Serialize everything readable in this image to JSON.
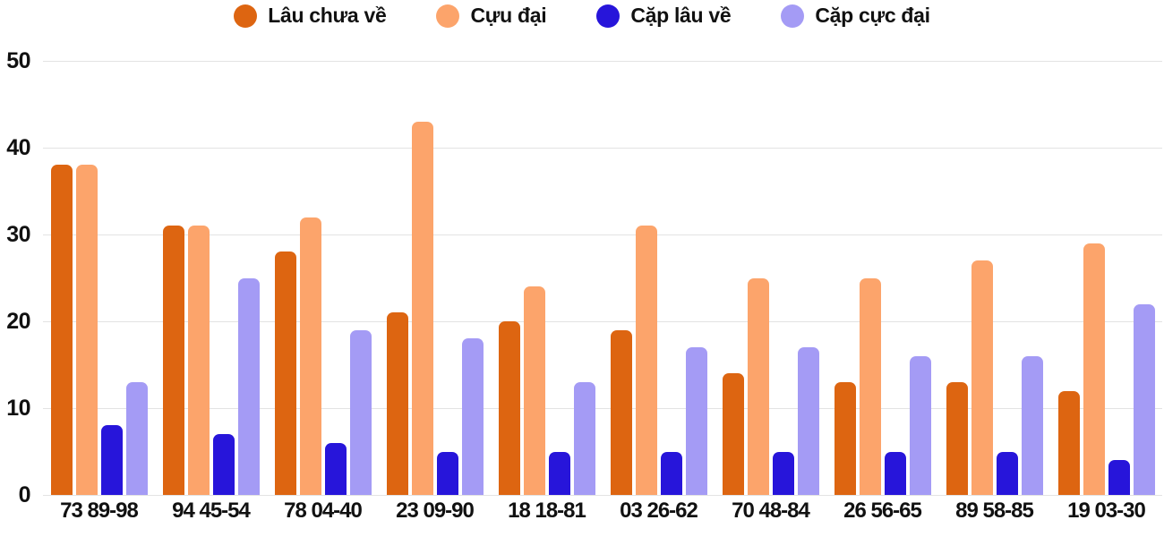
{
  "chart_data": {
    "type": "bar",
    "title": "",
    "categories": [
      "73 89-98",
      "94 45-54",
      "78 04-40",
      "23 09-90",
      "18 18-81",
      "03 26-62",
      "70 48-84",
      "26 56-65",
      "89 58-85",
      "19 03-30"
    ],
    "series": [
      {
        "name": "Lâu chưa về",
        "color": "#DD6511",
        "values": [
          38,
          31,
          28,
          21,
          20,
          19,
          14,
          13,
          13,
          12
        ]
      },
      {
        "name": "Cựu đại",
        "color": "#FCA46B",
        "values": [
          38,
          31,
          32,
          43,
          24,
          31,
          25,
          25,
          27,
          29
        ]
      },
      {
        "name": "Cặp lâu về",
        "color": "#2715DA",
        "values": [
          8,
          7,
          6,
          5,
          5,
          5,
          5,
          5,
          5,
          4
        ]
      },
      {
        "name": "Cặp cực đại",
        "color": "#A49BF5",
        "values": [
          13,
          25,
          19,
          18,
          13,
          17,
          17,
          16,
          16,
          22
        ]
      }
    ],
    "xlabel": "",
    "ylabel": "",
    "ylim": [
      0,
      50
    ],
    "y_ticks": [
      0,
      10,
      20,
      30,
      40,
      50
    ],
    "grid": true,
    "legend_position": "top",
    "grid_color": "#e3e3e3",
    "text_color": "#111111",
    "background_color": "#ffffff"
  }
}
